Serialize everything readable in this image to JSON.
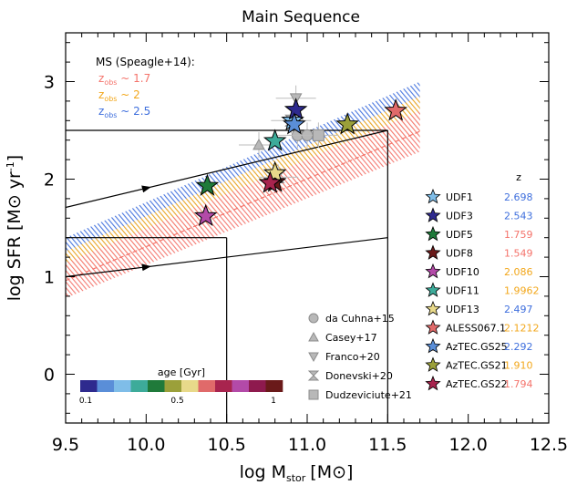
{
  "chart_data": {
    "type": "scatter",
    "title": "Main Sequence",
    "xlabel": "log M",
    "xlabel_sub": "stor",
    "xlabel_unit": "[M⊙]",
    "ylabel": "log SFR [M⊙ yr",
    "ylabel_sup": "-1",
    "ylabel_end": "]",
    "xlim": [
      9.5,
      12.5
    ],
    "ylim": [
      -0.5,
      3.5
    ],
    "xticks": [
      "9.5",
      "10.0",
      "10.5",
      "11.0",
      "11.5",
      "12.0",
      "12.5"
    ],
    "yticks": [
      "0",
      "1",
      "2",
      "3"
    ],
    "ms_legend": {
      "title": "MS (Speagle+14):",
      "entries": [
        {
          "prefix": "z",
          "sub": "obs",
          "text": "~ 1.7",
          "color": "#f4736b"
        },
        {
          "prefix": "z",
          "sub": "obs",
          "text": "~ 2",
          "color": "#f2a71b"
        },
        {
          "prefix": "z",
          "sub": "obs",
          "text": "~ 2.5",
          "color": "#3f6fdd"
        }
      ]
    },
    "ms_bands": [
      {
        "z": 2.5,
        "color": "#3f6fdd",
        "x": [
          9.5,
          11.7
        ],
        "y_lo": [
          1.08,
          2.58
        ],
        "y_hi": [
          1.4,
          3.0
        ]
      },
      {
        "z": 2.0,
        "color": "#f2a71b",
        "x": [
          9.5,
          11.7
        ],
        "y_lo": [
          0.96,
          2.46
        ],
        "y_hi": [
          1.26,
          2.85
        ]
      },
      {
        "z": 1.7,
        "color": "#f4736b",
        "x": [
          9.5,
          11.7
        ],
        "y_lo": [
          0.78,
          2.28
        ],
        "y_hi": [
          1.14,
          2.7
        ]
      }
    ],
    "age_line": [
      {
        "x": 9.5,
        "y": 1.0
      },
      {
        "x": 10.5,
        "y": 1.4
      },
      {
        "x": 11.5,
        "y": 2.5
      }
    ],
    "arrow_lines": [
      {
        "x": [
          9.5,
          11.5
        ],
        "y": [
          1.0,
          1.4
        ]
      },
      {
        "x": [
          9.5,
          11.5
        ],
        "y": [
          1.71,
          2.5
        ]
      }
    ],
    "shape_legend": [
      {
        "label": "da Cuhna+15",
        "marker": "circle"
      },
      {
        "label": "Casey+17",
        "marker": "triangle-up"
      },
      {
        "label": "Franco+20",
        "marker": "triangle-down"
      },
      {
        "label": "Donevski+20",
        "marker": "hourglass"
      },
      {
        "label": "Dudzeviciute+21",
        "marker": "square"
      }
    ],
    "grey_points": [
      {
        "marker": "circle",
        "x": 10.94,
        "y": 2.45
      },
      {
        "marker": "circle",
        "x": 11.0,
        "y": 2.45
      },
      {
        "marker": "square",
        "x": 11.07,
        "y": 2.45
      },
      {
        "marker": "triangle-up",
        "x": 10.7,
        "y": 2.35
      },
      {
        "marker": "triangle-down",
        "x": 10.93,
        "y": 2.83
      },
      {
        "marker": "hourglass",
        "x": 10.9,
        "y": 2.6
      },
      {
        "marker": "hourglass",
        "x": 10.82,
        "y": 2.02
      }
    ],
    "series_header": "z",
    "series": [
      {
        "name": "UDF1",
        "z": "2.698",
        "x": 10.91,
        "y": 2.6,
        "color": "#7fbde8",
        "zcolor": "#3f6fdd"
      },
      {
        "name": "UDF3",
        "z": "2.543",
        "x": 10.93,
        "y": 2.71,
        "color": "#2e2a8e",
        "zcolor": "#3f6fdd"
      },
      {
        "name": "UDF5",
        "z": "1.759",
        "x": 10.38,
        "y": 1.93,
        "color": "#1f7a3a",
        "zcolor": "#f4736b"
      },
      {
        "name": "UDF8",
        "z": "1.549",
        "x": 10.8,
        "y": 1.97,
        "color": "#6a1a1a",
        "zcolor": "#f4736b"
      },
      {
        "name": "UDF10",
        "z": "2.086",
        "x": 10.37,
        "y": 1.62,
        "color": "#b34aa8",
        "zcolor": "#f2a71b"
      },
      {
        "name": "UDF11",
        "z": "1.9962",
        "x": 10.8,
        "y": 2.39,
        "color": "#3dab9a",
        "zcolor": "#f2a71b"
      },
      {
        "name": "UDF13",
        "z": "2.497",
        "x": 10.8,
        "y": 2.06,
        "color": "#e8d98a",
        "zcolor": "#3f6fdd"
      },
      {
        "name": "ALESS067.1",
        "z": "2.1212",
        "x": 11.55,
        "y": 2.7,
        "color": "#e06a6a",
        "zcolor": "#f2a71b"
      },
      {
        "name": "AzTEC.GS25",
        "z": "2.292",
        "x": 10.92,
        "y": 2.56,
        "color": "#5a8ed8",
        "zcolor": "#3f6fdd"
      },
      {
        "name": "AzTEC.GS21",
        "z": "1.910",
        "x": 11.25,
        "y": 2.56,
        "color": "#9ba03a",
        "zcolor": "#f2a71b"
      },
      {
        "name": "AzTEC.GS22",
        "z": "1.794",
        "x": 10.77,
        "y": 1.96,
        "color": "#a8244e",
        "zcolor": "#f4736b"
      }
    ],
    "age_colorbar": {
      "title": "age [Gyr]",
      "labels": [
        "0.1",
        "0.5",
        "1"
      ],
      "colors": [
        "#2e2a8e",
        "#5a8ed8",
        "#7fbde8",
        "#3dab9a",
        "#1f7a3a",
        "#9ba03a",
        "#e8d98a",
        "#e06a6a",
        "#a8244e",
        "#b34aa8",
        "#8e1a4e",
        "#6a1a1a"
      ]
    }
  }
}
